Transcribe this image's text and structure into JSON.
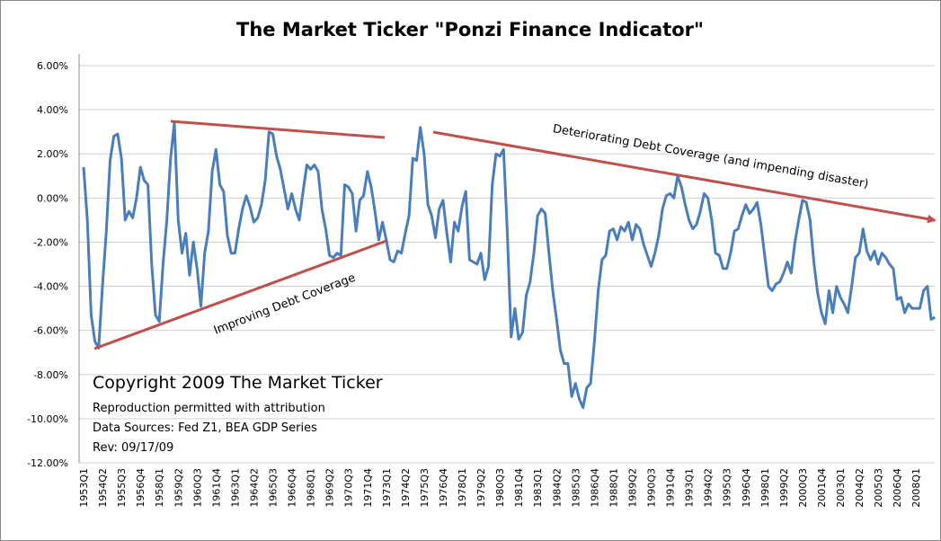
{
  "chart_data": {
    "type": "line",
    "title": "The Market Ticker \"Ponzi Finance Indicator\"",
    "annotations": [
      "Deteriorating Debt Coverage (and  impending disaster)",
      "Improving Debt Coverage",
      "Copyright 2009 The Market Ticker",
      "Reproduction permitted with attribution",
      "Data Sources: Fed Z1, BEA GDP Series",
      "Rev: 09/17/09"
    ],
    "categories": [
      "1953Q1",
      null,
      null,
      null,
      null,
      "1954Q2",
      null,
      null,
      null,
      null,
      "1955Q3",
      null,
      null,
      null,
      null,
      "1956Q4",
      null,
      null,
      null,
      null,
      "1958Q1",
      null,
      null,
      null,
      null,
      "1959Q2",
      null,
      null,
      null,
      null,
      "1960Q3",
      null,
      null,
      null,
      null,
      "1961Q4",
      null,
      null,
      null,
      null,
      "1963Q1",
      null,
      null,
      null,
      null,
      "1964Q2",
      null,
      null,
      null,
      null,
      "1965Q3",
      null,
      null,
      null,
      null,
      "1966Q4",
      null,
      null,
      null,
      null,
      "1968Q1",
      null,
      null,
      null,
      null,
      "1969Q2",
      null,
      null,
      null,
      null,
      "1970Q3",
      null,
      null,
      null,
      null,
      "1971Q4",
      null,
      null,
      null,
      null,
      "1973Q1",
      null,
      null,
      null,
      null,
      "1974Q2",
      null,
      null,
      null,
      null,
      "1975Q3",
      null,
      null,
      null,
      null,
      "1976Q4",
      null,
      null,
      null,
      null,
      "1978Q1",
      null,
      null,
      null,
      null,
      "1979Q2",
      null,
      null,
      null,
      null,
      "1980Q3",
      null,
      null,
      null,
      null,
      "1981Q4",
      null,
      null,
      null,
      null,
      "1983Q1",
      null,
      null,
      null,
      null,
      "1984Q2",
      null,
      null,
      null,
      null,
      "1985Q3",
      null,
      null,
      null,
      null,
      "1986Q4",
      null,
      null,
      null,
      null,
      "1988Q1",
      null,
      null,
      null,
      null,
      "1989Q2",
      null,
      null,
      null,
      null,
      "1990Q3",
      null,
      null,
      null,
      null,
      "1991Q4",
      null,
      null,
      null,
      null,
      "1993Q1",
      null,
      null,
      null,
      null,
      "1994Q2",
      null,
      null,
      null,
      null,
      "1995Q3",
      null,
      null,
      null,
      null,
      "1996Q4",
      null,
      null,
      null,
      null,
      "1998Q1",
      null,
      null,
      null,
      null,
      "1999Q2",
      null,
      null,
      null,
      null,
      "2000Q3",
      null,
      null,
      null,
      null,
      "2001Q4",
      null,
      null,
      null,
      null,
      "2003Q1",
      null,
      null,
      null,
      null,
      "2004Q2",
      null,
      null,
      null,
      null,
      "2005Q3",
      null,
      null,
      null,
      null,
      "2006Q4",
      null,
      null,
      null,
      null,
      "2008Q1",
      null,
      null,
      null,
      null,
      null
    ],
    "values": [
      1.4,
      -1.0,
      -5.3,
      -6.5,
      -6.8,
      -4.0,
      -1.5,
      1.7,
      2.8,
      2.9,
      1.8,
      -1.0,
      -0.6,
      -0.9,
      0.0,
      1.4,
      0.8,
      0.6,
      -3.0,
      -5.3,
      -5.6,
      -3.0,
      -1.0,
      1.8,
      3.4,
      -1.0,
      -2.5,
      -1.6,
      -3.5,
      -2.0,
      -3.2,
      -4.9,
      -2.5,
      -1.5,
      1.2,
      2.2,
      0.6,
      0.3,
      -1.7,
      -2.5,
      -2.5,
      -1.4,
      -0.5,
      0.1,
      -0.4,
      -1.1,
      -0.9,
      -0.3,
      0.8,
      3.0,
      2.9,
      1.9,
      1.3,
      0.4,
      -0.5,
      0.2,
      -0.5,
      -1.0,
      0.3,
      1.5,
      1.3,
      1.5,
      1.2,
      -0.5,
      -1.4,
      -2.6,
      -2.7,
      -2.5,
      -2.6,
      0.6,
      0.5,
      0.2,
      -1.5,
      -0.1,
      0.1,
      1.2,
      0.5,
      -0.6,
      -1.9,
      -1.1,
      -1.9,
      -2.8,
      -2.9,
      -2.4,
      -2.5,
      -1.6,
      -0.8,
      1.8,
      1.7,
      3.2,
      2.0,
      -0.3,
      -0.8,
      -1.8,
      -0.5,
      -0.1,
      -1.6,
      -2.9,
      -1.1,
      -1.5,
      -0.4,
      0.3,
      -2.8,
      -2.9,
      -3.0,
      -2.5,
      -3.7,
      -3.1,
      0.6,
      2.0,
      1.9,
      2.2,
      -1.6,
      -6.3,
      -5.0,
      -6.4,
      -6.1,
      -4.4,
      -3.8,
      -2.5,
      -0.8,
      -0.5,
      -0.7,
      -2.5,
      -4.2,
      -5.5,
      -6.9,
      -7.5,
      -7.5,
      -9.0,
      -8.4,
      -9.1,
      -9.5,
      -8.6,
      -8.4,
      -6.5,
      -4.2,
      -2.8,
      -2.6,
      -1.5,
      -1.4,
      -1.9,
      -1.3,
      -1.5,
      -1.1,
      -1.9,
      -1.2,
      -1.4,
      -2.1,
      -2.6,
      -3.1,
      -2.5,
      -1.7,
      -0.5,
      0.1,
      0.2,
      0.0,
      1.0,
      0.5,
      -0.3,
      -1.0,
      -1.4,
      -1.2,
      -0.6,
      0.2,
      0.0,
      -1.0,
      -2.5,
      -2.6,
      -3.2,
      -3.2,
      -2.5,
      -1.5,
      -1.4,
      -0.8,
      -0.3,
      -0.7,
      -0.5,
      -0.2,
      -1.2,
      -2.6,
      -4.0,
      -4.2,
      -3.9,
      -3.8,
      -3.4,
      -2.9,
      -3.4,
      -2.0,
      -1.0,
      -0.1,
      -0.2,
      -1.0,
      -2.9,
      -4.3,
      -5.2,
      -5.7,
      -4.2,
      -5.2,
      -4.0,
      -4.5,
      -4.8,
      -5.2,
      -4.0,
      -2.7,
      -2.5,
      -1.4,
      -2.4,
      -2.8,
      -2.4,
      -3.0,
      -2.5,
      -2.7,
      -3.0,
      -3.2,
      -4.6,
      -4.5,
      -5.2,
      -4.8,
      -5.0,
      -5.0,
      -5.0,
      -4.2,
      -4.0,
      -5.5,
      -5.4
    ],
    "color": "#4a7ebb",
    "ylim": [
      -12,
      6
    ],
    "yticks": [
      {
        "value": -12,
        "label": "-12.00%"
      },
      {
        "value": -10,
        "label": "-10.00%"
      },
      {
        "value": -8,
        "label": "-8.00%"
      },
      {
        "value": -6,
        "label": "-6.00%"
      },
      {
        "value": -4,
        "label": "-4.00%"
      },
      {
        "value": -2,
        "label": "-2.00%"
      },
      {
        "value": 0,
        "label": "0.00%"
      },
      {
        "value": 2,
        "label": "2.00%"
      },
      {
        "value": 4,
        "label": "4.00%"
      },
      {
        "value": 6,
        "label": "6.00%"
      }
    ],
    "grid": true
  }
}
